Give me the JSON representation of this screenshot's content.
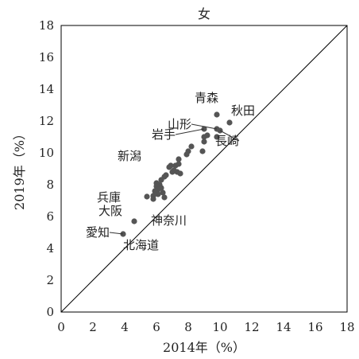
{
  "chart_data": {
    "type": "scatter",
    "title": "女",
    "xlabel": "2014年（%）",
    "ylabel": "2019年（%）",
    "xlim": [
      0,
      18
    ],
    "ylim": [
      0,
      18
    ],
    "xticks": [
      "0",
      "2",
      "4",
      "6",
      "8",
      "10",
      "12",
      "14",
      "16",
      "18"
    ],
    "yticks": [
      "0",
      "2",
      "4",
      "6",
      "8",
      "10",
      "12",
      "14",
      "16",
      "18"
    ],
    "grid": false,
    "diagonal_line": true,
    "series": [
      {
        "points": [
          {
            "x": 9.8,
            "y": 12.4
          },
          {
            "x": 10.6,
            "y": 11.9
          },
          {
            "x": 9.8,
            "y": 11.5
          },
          {
            "x": 10.0,
            "y": 11.4
          },
          {
            "x": 9.0,
            "y": 11.5
          },
          {
            "x": 9.2,
            "y": 11.1
          },
          {
            "x": 9.0,
            "y": 11.0
          },
          {
            "x": 9.8,
            "y": 11.0
          },
          {
            "x": 9.0,
            "y": 10.7
          },
          {
            "x": 8.9,
            "y": 10.1
          },
          {
            "x": 8.2,
            "y": 10.4
          },
          {
            "x": 8.0,
            "y": 10.1
          },
          {
            "x": 7.9,
            "y": 9.9
          },
          {
            "x": 7.4,
            "y": 9.6
          },
          {
            "x": 7.4,
            "y": 9.3
          },
          {
            "x": 7.2,
            "y": 9.2
          },
          {
            "x": 6.9,
            "y": 9.2
          },
          {
            "x": 6.8,
            "y": 9.1
          },
          {
            "x": 7.1,
            "y": 8.9
          },
          {
            "x": 7.3,
            "y": 8.8
          },
          {
            "x": 7.0,
            "y": 8.8
          },
          {
            "x": 7.5,
            "y": 8.7
          },
          {
            "x": 6.6,
            "y": 8.6
          },
          {
            "x": 6.5,
            "y": 8.5
          },
          {
            "x": 6.3,
            "y": 8.3
          },
          {
            "x": 6.0,
            "y": 8.1
          },
          {
            "x": 6.2,
            "y": 8.0
          },
          {
            "x": 6.0,
            "y": 7.9
          },
          {
            "x": 6.3,
            "y": 7.8
          },
          {
            "x": 6.1,
            "y": 7.7
          },
          {
            "x": 5.9,
            "y": 7.6
          },
          {
            "x": 6.4,
            "y": 7.5
          },
          {
            "x": 6.1,
            "y": 7.4
          },
          {
            "x": 5.8,
            "y": 7.3
          },
          {
            "x": 5.4,
            "y": 7.25
          },
          {
            "x": 6.5,
            "y": 7.2
          },
          {
            "x": 5.8,
            "y": 7.1
          },
          {
            "x": 4.6,
            "y": 5.7
          },
          {
            "x": 3.9,
            "y": 4.9
          }
        ]
      }
    ],
    "annotations": [
      {
        "text": "青森",
        "x": 9.8,
        "y": 12.4
      },
      {
        "text": "秋田",
        "x": 10.6,
        "y": 11.9
      },
      {
        "text": "山形",
        "x": 9.8,
        "y": 11.5
      },
      {
        "text": "長崎",
        "x": 10.0,
        "y": 11.4
      },
      {
        "text": "岩手",
        "x": 9.0,
        "y": 11.5
      },
      {
        "text": "新潟",
        "x": 7.4,
        "y": 9.6
      },
      {
        "text": "兵庫",
        "x": 5.4,
        "y": 7.25
      },
      {
        "text": "神奈川",
        "x": 6.5,
        "y": 7.2
      },
      {
        "text": "大阪",
        "x": 4.6,
        "y": 5.7
      },
      {
        "text": "愛知",
        "x": 3.9,
        "y": 4.9
      },
      {
        "text": "北海道",
        "x": 3.9,
        "y": 4.9
      }
    ]
  }
}
